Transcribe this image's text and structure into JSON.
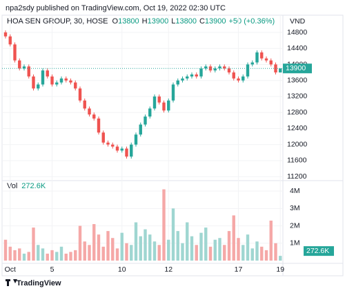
{
  "header": "npa2sdy published on TradingView.com, Oct 19, 2022 02:30 UTC",
  "footer": "TradingView",
  "chart_data": {
    "type": "candlestick",
    "symbol": "HOA SEN GROUP, 30, HOSE",
    "ohlc_labels": [
      "O",
      "H",
      "L",
      "C"
    ],
    "change": "+50 (+0.36%)",
    "currency": "VND",
    "up_color": "#26a69a",
    "down_color": "#ef5350",
    "categories": [
      null,
      "Oct",
      null,
      null,
      null,
      null,
      null,
      null,
      null,
      null,
      "5",
      null,
      null,
      null,
      null,
      null,
      null,
      null,
      null,
      null,
      null,
      null,
      null,
      null,
      null,
      "10",
      null,
      null,
      null,
      null,
      null,
      null,
      null,
      null,
      null,
      "12",
      null,
      null,
      null,
      null,
      null,
      null,
      null,
      null,
      null,
      null,
      null,
      null,
      null,
      null,
      "17",
      null,
      null,
      null,
      null,
      null,
      null,
      null,
      null,
      "19"
    ],
    "open": [
      14800,
      14700,
      14500,
      14100,
      13900,
      13950,
      13700,
      13400,
      13500,
      13850,
      13700,
      13500,
      13550,
      13650,
      13600,
      13550,
      13400,
      13100,
      12900,
      12750,
      12650,
      12300,
      12050,
      12000,
      11950,
      11850,
      11900,
      11700,
      12000,
      12250,
      12500,
      12700,
      12900,
      13200,
      13050,
      12850,
      13100,
      13500,
      13600,
      13650,
      13700,
      13750,
      13700,
      13900,
      13950,
      13850,
      13900,
      13950,
      13900,
      13800,
      13650,
      13600,
      13700,
      14000,
      14050,
      14300,
      14150,
      14100,
      14000,
      13800
    ],
    "high": [
      14850,
      14750,
      14550,
      14150,
      14000,
      14000,
      13750,
      13550,
      13900,
      13900,
      13750,
      13600,
      13700,
      13700,
      13650,
      13600,
      13450,
      13150,
      12950,
      12800,
      12700,
      12350,
      12100,
      12050,
      12000,
      11950,
      11950,
      12050,
      12300,
      12550,
      12750,
      12950,
      13250,
      13250,
      13100,
      13150,
      13550,
      13650,
      13700,
      13750,
      13800,
      13800,
      13950,
      14000,
      14000,
      13950,
      14000,
      14000,
      13950,
      13850,
      13700,
      13750,
      14050,
      14100,
      14350,
      14350,
      14200,
      14150,
      14050,
      13900
    ],
    "low": [
      14650,
      14450,
      14050,
      13850,
      13850,
      13650,
      13350,
      13350,
      13450,
      13650,
      13450,
      13450,
      13500,
      13550,
      13500,
      13350,
      13050,
      12850,
      12700,
      12600,
      12250,
      12000,
      11950,
      11900,
      11800,
      11800,
      11650,
      11650,
      11950,
      12200,
      12450,
      12650,
      12850,
      13000,
      12800,
      12800,
      13050,
      13450,
      13550,
      13600,
      13650,
      13650,
      13650,
      13850,
      13800,
      13800,
      13850,
      13850,
      13750,
      13600,
      13550,
      13550,
      13650,
      13950,
      14000,
      14100,
      14050,
      13950,
      13750,
      13800
    ],
    "close": [
      14700,
      14500,
      14100,
      13900,
      13950,
      13700,
      13400,
      13500,
      13850,
      13700,
      13500,
      13550,
      13650,
      13600,
      13550,
      13400,
      13100,
      12900,
      12750,
      12650,
      12300,
      12050,
      12000,
      11950,
      11850,
      11900,
      11700,
      12000,
      12250,
      12500,
      12700,
      12900,
      13200,
      13050,
      12850,
      13100,
      13500,
      13600,
      13650,
      13700,
      13750,
      13700,
      13900,
      13950,
      13850,
      13900,
      13950,
      13900,
      13800,
      13650,
      13600,
      13700,
      14000,
      14050,
      14300,
      14150,
      14100,
      14000,
      13800,
      13900
    ],
    "ylim": [
      11100,
      15230
    ],
    "yticks": [
      11200,
      11600,
      12000,
      12400,
      12800,
      13200,
      13600,
      14000,
      14400,
      14800
    ],
    "volume": {
      "name": "Vol",
      "up_color": "#9fd6d1",
      "down_color": "#f5a8a7",
      "values": [
        1200000,
        800000,
        600000,
        700000,
        400000,
        500000,
        1900000,
        900000,
        700000,
        400000,
        600000,
        500000,
        800000,
        400000,
        500000,
        600000,
        2000000,
        1100000,
        900000,
        2100000,
        1500000,
        800000,
        1700000,
        1300000,
        700000,
        1600000,
        1000000,
        900000,
        2200000,
        1400000,
        1800000,
        1500000,
        1100000,
        900000,
        4100000,
        1200000,
        3000000,
        1700000,
        1000000,
        2200000,
        1400000,
        900000,
        1600000,
        1900000,
        800000,
        1200000,
        1300000,
        900000,
        1700000,
        2600000,
        1300000,
        900000,
        1500000,
        700000,
        1100000,
        800000,
        600000,
        2300000,
        1000000,
        272600
      ],
      "last_label": "272.6K",
      "ylim": [
        0,
        4600000
      ],
      "yticks": [
        {
          "value": 1000000,
          "label": "1M"
        },
        {
          "value": 2000000,
          "label": "2M"
        },
        {
          "value": 3000000,
          "label": "3M"
        },
        {
          "value": 4000000,
          "label": "4M"
        }
      ]
    }
  }
}
